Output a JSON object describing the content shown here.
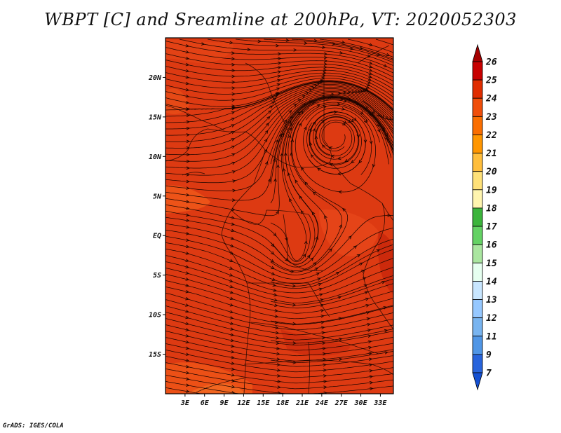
{
  "title": "WBPT [C] and Sreamline at 200hPa, VT: 2020052303",
  "credit": "GrADS: IGES/COLA",
  "map": {
    "lat_labels": [
      "20N",
      "15N",
      "10N",
      "5N",
      "EQ",
      "5S",
      "10S",
      "15S"
    ],
    "lat_values": [
      20,
      15,
      10,
      5,
      0,
      -5,
      -10,
      -15
    ],
    "lon_labels": [
      "3E",
      "6E",
      "9E",
      "12E",
      "15E",
      "18E",
      "21E",
      "24E",
      "27E",
      "30E",
      "33E"
    ],
    "lon_values": [
      3,
      6,
      9,
      12,
      15,
      18,
      21,
      24,
      27,
      30,
      33
    ],
    "lon_range": [
      0,
      35
    ],
    "lat_range": [
      -20,
      25
    ],
    "field_color": "#dd3a12",
    "cyclone_center": {
      "lon": 26,
      "lat": 12.8
    }
  },
  "colorbar": {
    "labels": [
      "26",
      "25",
      "24",
      "23",
      "22",
      "21",
      "20",
      "19",
      "18",
      "17",
      "16",
      "15",
      "14",
      "13",
      "12",
      "11",
      "9",
      "7"
    ],
    "colors": [
      "#a50000",
      "#c80000",
      "#e02d00",
      "#f04e0a",
      "#fa6e00",
      "#ff9600",
      "#ffbe3c",
      "#ffe178",
      "#fff5af",
      "#3cb43c",
      "#64d264",
      "#aae6a0",
      "#e6fff0",
      "#c8e6ff",
      "#96c8ff",
      "#78b4f0",
      "#5096e6",
      "#2864dc",
      "#1450d2"
    ]
  }
}
